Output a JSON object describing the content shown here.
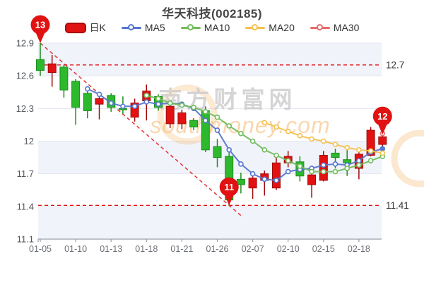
{
  "title": "华天科技(002185)",
  "legend": {
    "items": [
      {
        "label": "日K",
        "type": "kline",
        "color": "#e01212"
      },
      {
        "label": "MA5",
        "type": "ma",
        "color": "#5677cf"
      },
      {
        "label": "MA10",
        "type": "ma",
        "color": "#71bd5d"
      },
      {
        "label": "MA20",
        "type": "ma",
        "color": "#f6c14f"
      },
      {
        "label": "MA30",
        "type": "ma",
        "color": "#e96b6b"
      }
    ]
  },
  "watermark": {
    "line1": "南方财富网",
    "line2": "southmoney.com",
    "text_color": "#c6c6c6",
    "accent_color": "#f4a84f"
  },
  "chart_data": {
    "type": "candlestick",
    "title": "华天科技(002185)",
    "categories": [
      "01-05",
      "01-06",
      "01-07",
      "01-10",
      "01-11",
      "01-12",
      "01-13",
      "01-14",
      "01-17",
      "01-18",
      "01-19",
      "01-20",
      "01-21",
      "01-24",
      "01-25",
      "01-26",
      "01-27",
      "01-28",
      "02-07",
      "02-08",
      "02-09",
      "02-10",
      "02-11",
      "02-14",
      "02-15",
      "02-16",
      "02-17",
      "02-18",
      "02-21",
      "02-22"
    ],
    "x_tick_label_indices": [
      0,
      3,
      6,
      9,
      12,
      15,
      18,
      21,
      24,
      27
    ],
    "ohlc_format": [
      "open",
      "close",
      "low",
      "high"
    ],
    "candles": [
      [
        12.75,
        12.65,
        12.6,
        12.9
      ],
      [
        12.63,
        12.71,
        12.5,
        12.79
      ],
      [
        12.68,
        12.47,
        12.4,
        12.7
      ],
      [
        12.55,
        12.31,
        12.15,
        12.57
      ],
      [
        12.44,
        12.28,
        12.21,
        12.47
      ],
      [
        12.34,
        12.39,
        12.2,
        12.41
      ],
      [
        12.42,
        12.31,
        12.27,
        12.44
      ],
      [
        12.3,
        12.29,
        12.25,
        12.41
      ],
      [
        12.22,
        12.35,
        12.18,
        12.39
      ],
      [
        12.37,
        12.46,
        12.19,
        12.52
      ],
      [
        12.41,
        12.31,
        12.28,
        12.43
      ],
      [
        12.16,
        12.32,
        12.12,
        12.34
      ],
      [
        12.16,
        12.26,
        12.11,
        12.29
      ],
      [
        12.19,
        12.13,
        12.1,
        12.21
      ],
      [
        12.28,
        11.92,
        11.9,
        12.32
      ],
      [
        11.95,
        11.85,
        11.76,
        12.02
      ],
      [
        11.86,
        11.46,
        11.41,
        11.92
      ],
      [
        11.65,
        11.6,
        11.52,
        11.71
      ],
      [
        11.57,
        11.66,
        11.47,
        11.69
      ],
      [
        11.64,
        11.7,
        11.5,
        11.73
      ],
      [
        11.57,
        11.8,
        11.55,
        11.85
      ],
      [
        11.8,
        11.86,
        11.76,
        11.91
      ],
      [
        11.81,
        11.68,
        11.63,
        11.86
      ],
      [
        11.6,
        11.69,
        11.48,
        11.74
      ],
      [
        11.64,
        11.87,
        11.63,
        11.91
      ],
      [
        11.89,
        11.85,
        11.75,
        11.93
      ],
      [
        11.83,
        11.8,
        11.68,
        11.94
      ],
      [
        11.75,
        11.88,
        11.65,
        11.92
      ],
      [
        11.87,
        12.1,
        11.86,
        12.13
      ],
      [
        11.97,
        12.04,
        11.92,
        12.06
      ]
    ],
    "series": [
      {
        "name": "MA5",
        "color": "#5677cf",
        "start_index": 4,
        "values": [
          12.48,
          12.43,
          12.35,
          12.32,
          12.32,
          12.36,
          12.34,
          12.35,
          12.34,
          12.3,
          12.19,
          12.1,
          11.92,
          11.79,
          11.7,
          11.65,
          11.64,
          11.72,
          11.74,
          11.75,
          11.78,
          11.79,
          11.78,
          11.82,
          11.9,
          11.93
        ]
      },
      {
        "name": "MA10",
        "color": "#71bd5d",
        "start_index": 9,
        "values": [
          12.42,
          12.39,
          12.35,
          12.33,
          12.31,
          12.27,
          12.22,
          12.14,
          12.07,
          12.0,
          11.92,
          11.87,
          11.82,
          11.77,
          11.72,
          11.72,
          11.72,
          11.75,
          11.78,
          11.82,
          11.86
        ]
      },
      {
        "name": "MA20",
        "color": "#f6c14f",
        "start_index": 19,
        "values": [
          12.17,
          12.13,
          12.09,
          12.05,
          12.02,
          12.0,
          11.97,
          11.94,
          11.92,
          11.91,
          11.89
        ]
      },
      {
        "name": "MA30",
        "color": "#e96b6b",
        "start_index": 29,
        "values": [
          12.07
        ]
      }
    ],
    "ylim": [
      11.1,
      12.9
    ],
    "y_ticks": [
      12.9,
      12.6,
      12.3,
      12,
      11.7,
      11.4,
      11.1
    ],
    "mark_lines": [
      {
        "value": 12.7,
        "label": "12.7"
      },
      {
        "value": 11.41,
        "label": "11.41"
      }
    ],
    "mark_points": [
      {
        "label": "13",
        "index": 0,
        "anchor": "high"
      },
      {
        "label": "11",
        "index": 16,
        "anchor": "low"
      },
      {
        "label": "12",
        "index": 29,
        "anchor": "high"
      }
    ],
    "trend_line": {
      "from_index": 0,
      "from_anchor": "high",
      "to_index": 16,
      "to_anchor": "low"
    },
    "grid": true,
    "legend_position": "top",
    "colors": {
      "up_fill": "#e31212",
      "up_border": "#9e0a0a",
      "down_fill": "#2db82d",
      "down_border": "#1b8f1b",
      "mark_red": "#e01212",
      "grid_line": "#e3e6f0",
      "axis_line": "#9aa0a6",
      "x_label": "#6b6f76",
      "y_label": "#55585e",
      "mark_label": "#333333",
      "split_bands": [
        "#f1f3fa",
        "#ffffff",
        "#ffffff",
        "#f1f3fa",
        "#ffffff",
        "#f1f3fa"
      ]
    }
  }
}
